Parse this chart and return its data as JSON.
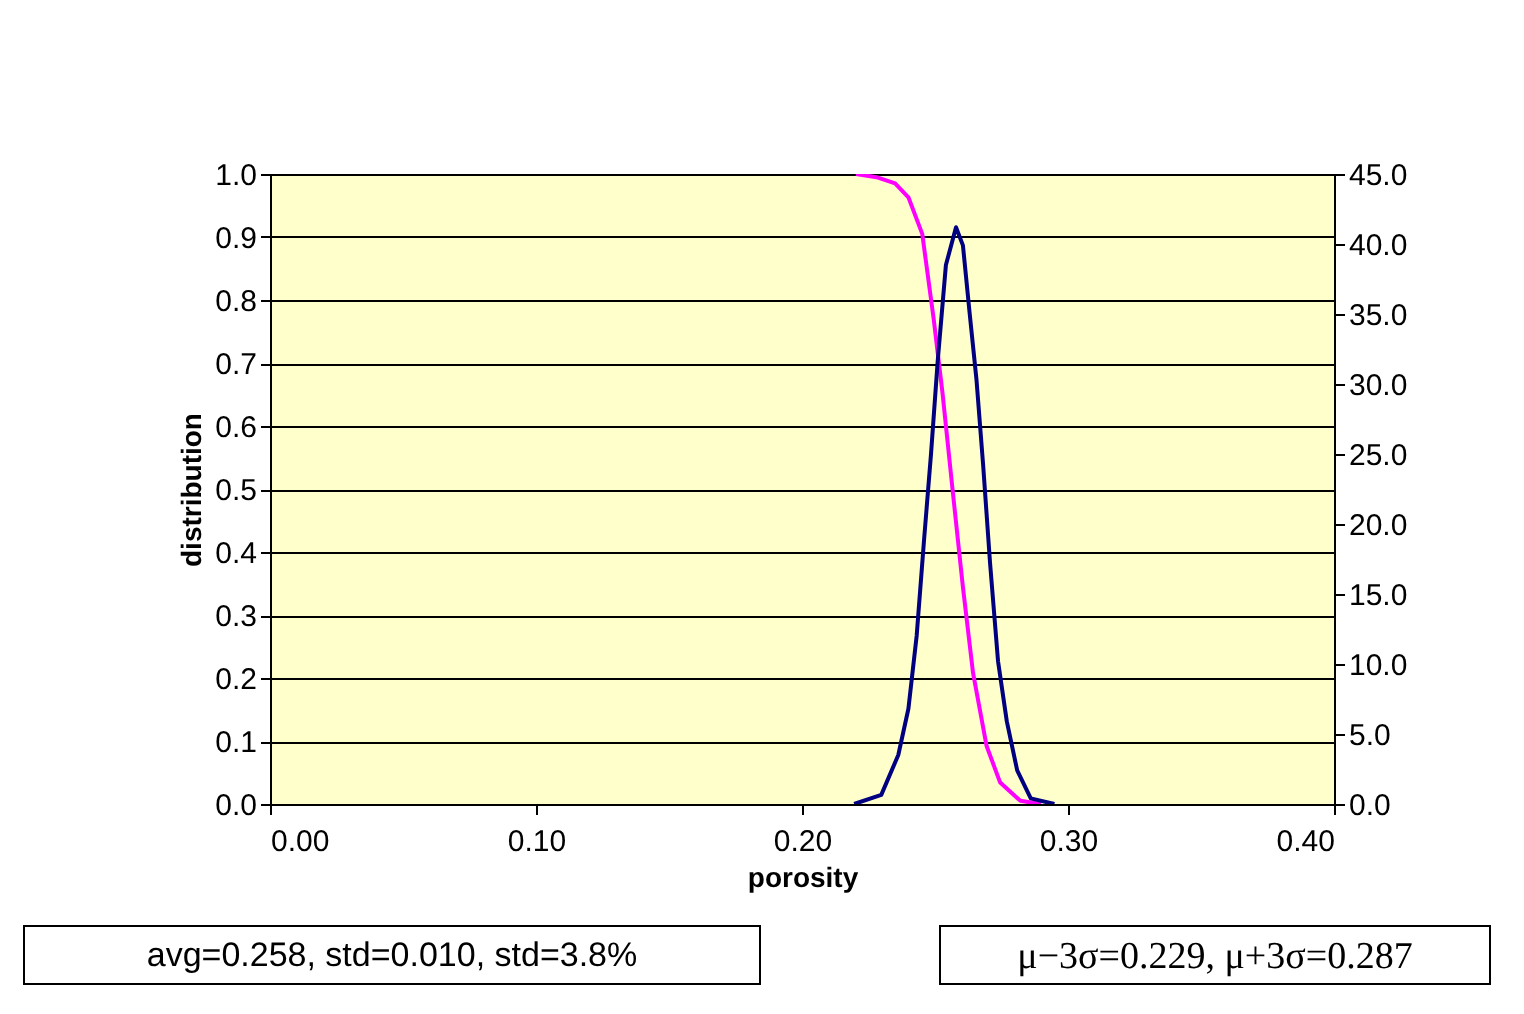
{
  "chart_data": {
    "type": "line",
    "xlabel": "porosity",
    "ylabel": "distribution",
    "xlim": [
      0,
      0.4
    ],
    "xticks": [
      {
        "value": 0,
        "label": "0.00"
      },
      {
        "value": 0.1,
        "label": "0.10"
      },
      {
        "value": 0.2,
        "label": "0.20"
      },
      {
        "value": 0.3,
        "label": "0.30"
      },
      {
        "value": 0.4,
        "label": "0.40"
      }
    ],
    "ylim": [
      0,
      1
    ],
    "yticks": [
      {
        "value": 0,
        "label": "0.0"
      },
      {
        "value": 0.1,
        "label": "0.1"
      },
      {
        "value": 0.2,
        "label": "0.2"
      },
      {
        "value": 0.3,
        "label": "0.3"
      },
      {
        "value": 0.4,
        "label": "0.4"
      },
      {
        "value": 0.5,
        "label": "0.5"
      },
      {
        "value": 0.6,
        "label": "0.6"
      },
      {
        "value": 0.7,
        "label": "0.7"
      },
      {
        "value": 0.8,
        "label": "0.8"
      },
      {
        "value": 0.9,
        "label": "0.9"
      },
      {
        "value": 1,
        "label": "1.0"
      }
    ],
    "y2lim": [
      0,
      45
    ],
    "y2ticks": [
      {
        "value": 0,
        "label": "0.0"
      },
      {
        "value": 5,
        "label": "5.0"
      },
      {
        "value": 10,
        "label": "10.0"
      },
      {
        "value": 15,
        "label": "15.0"
      },
      {
        "value": 20,
        "label": "20.0"
      },
      {
        "value": 25,
        "label": "25.0"
      },
      {
        "value": 30,
        "label": "30.0"
      },
      {
        "value": 35,
        "label": "35.0"
      },
      {
        "value": 40,
        "label": "40.0"
      },
      {
        "value": 45,
        "label": "45.0"
      }
    ],
    "grid": "y",
    "marker": "none",
    "line_style": "solid",
    "series": [
      {
        "color": "#ff00ff",
        "x": [
          0.2203,
          0.228,
          0.235,
          0.24,
          0.2452,
          0.2495,
          0.2528,
          0.2566,
          0.2605,
          0.2643,
          0.2694,
          0.2745,
          0.2821,
          0.2898
        ],
        "values": [
          1.0,
          0.995,
          0.985,
          0.963,
          0.905,
          0.77,
          0.653,
          0.499,
          0.344,
          0.208,
          0.092,
          0.034,
          0.005,
          0.0
        ]
      },
      {
        "color": "#000080",
        "axis": "y2",
        "x": [
          0.2196,
          0.2298,
          0.2362,
          0.24,
          0.2431,
          0.2459,
          0.2485,
          0.251,
          0.2541,
          0.2579,
          0.2605,
          0.263,
          0.2656,
          0.2681,
          0.2707,
          0.2737,
          0.277,
          0.2809,
          0.286,
          0.2949
        ],
        "values": [
          0,
          0.65,
          3.5,
          6.8,
          12.0,
          18.9,
          25.0,
          31.6,
          38.5,
          41.2,
          39.9,
          35.1,
          30.3,
          24.2,
          17.2,
          10.2,
          5.9,
          2.4,
          0.4,
          0
        ]
      }
    ],
    "annotations": [
      "avg=0.258, std=0.010, std=3.8%",
      "μ−3σ=0.229, μ+3σ=0.287"
    ]
  }
}
